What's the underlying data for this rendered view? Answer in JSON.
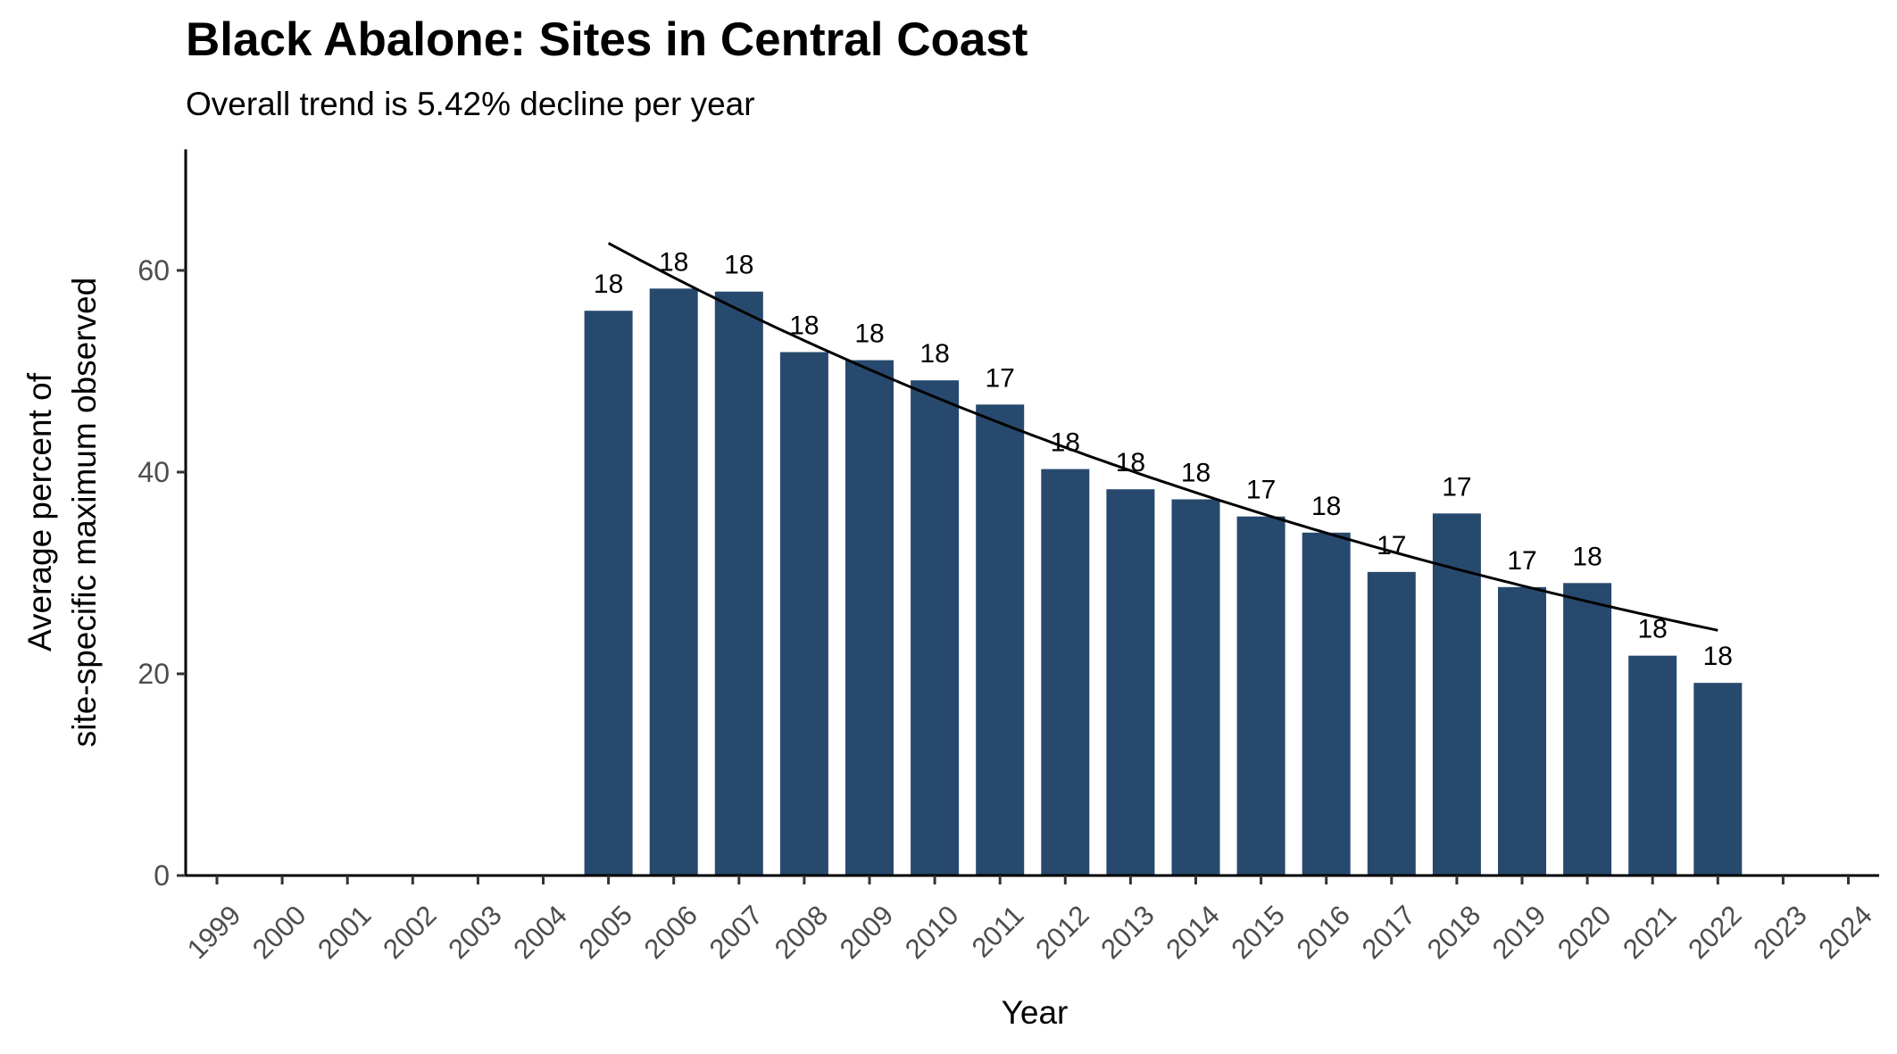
{
  "chart_data": {
    "type": "bar",
    "title": "Black Abalone: Sites in Central Coast",
    "subtitle": "Overall trend is 5.42% decline per year",
    "xlabel": "Year",
    "ylabel_lines": [
      "Average percent of",
      "site-specific maximum observed"
    ],
    "categories": [
      "1999",
      "2000",
      "2001",
      "2002",
      "2003",
      "2004",
      "2005",
      "2006",
      "2007",
      "2008",
      "2009",
      "2010",
      "2011",
      "2012",
      "2013",
      "2014",
      "2015",
      "2016",
      "2017",
      "2018",
      "2019",
      "2020",
      "2021",
      "2022",
      "2023",
      "2024"
    ],
    "values": [
      null,
      null,
      null,
      null,
      null,
      null,
      56,
      58.2,
      57.9,
      51.9,
      51.1,
      49.1,
      46.7,
      40.3,
      38.3,
      37.3,
      35.6,
      34.0,
      30.1,
      35.9,
      28.6,
      29.0,
      21.8,
      19.1,
      null,
      null
    ],
    "bar_labels": [
      null,
      null,
      null,
      null,
      null,
      null,
      "18",
      "18",
      "18",
      "18",
      "18",
      "18",
      "17",
      "18",
      "18",
      "18",
      "17",
      "18",
      "17",
      "17",
      "17",
      "18",
      "18",
      "18",
      null,
      null
    ],
    "trend": {
      "x": [
        "2005",
        "2022"
      ],
      "start_value": 62.7,
      "annual_decline_pct": 5.42
    },
    "yticks": [
      0,
      20,
      40,
      60
    ],
    "ylim": [
      0,
      72
    ],
    "bar_color": "#27496d",
    "grid": false,
    "legend": "none"
  }
}
